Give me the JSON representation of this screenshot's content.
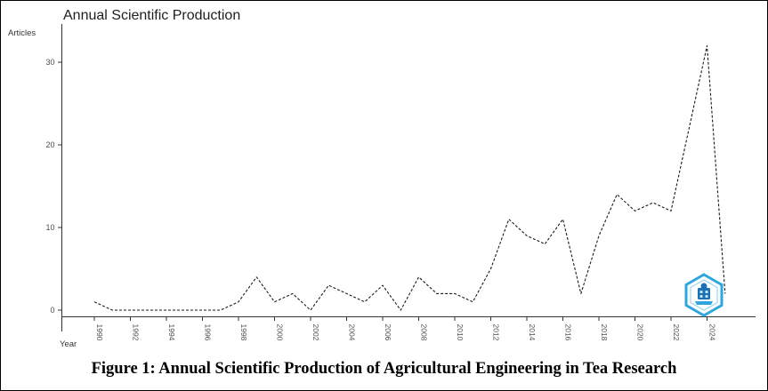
{
  "chart": {
    "title": "Annual Scientific Production",
    "ylabel": "Articles",
    "xlabel": "Year"
  },
  "caption": "Figure 1: Annual Scientific Production of Agricultural Engineering in Tea Research",
  "watermark": {
    "name": "hexagon-logo",
    "primary": "#2fa6de",
    "secondary": "#1a6fb5",
    "accent": "#bfe6f5"
  },
  "chart_data": {
    "type": "line",
    "title": "Annual Scientific Production",
    "xlabel": "Year",
    "ylabel": "Articles",
    "x": [
      1990,
      1991,
      1992,
      1993,
      1994,
      1995,
      1996,
      1997,
      1998,
      1999,
      2000,
      2001,
      2002,
      2003,
      2004,
      2005,
      2006,
      2007,
      2008,
      2009,
      2010,
      2011,
      2012,
      2013,
      2014,
      2015,
      2016,
      2017,
      2018,
      2019,
      2020,
      2021,
      2022,
      2023,
      2024,
      2025
    ],
    "values": [
      1,
      0,
      0,
      0,
      0,
      0,
      0,
      0,
      1,
      4,
      1,
      2,
      0,
      3,
      2,
      1,
      3,
      0,
      4,
      2,
      2,
      1,
      5,
      11,
      9,
      8,
      11,
      2,
      9,
      14,
      12,
      13,
      12,
      22,
      32,
      2
    ],
    "x_tick_labels": [
      "1990",
      "1992",
      "1994",
      "1996",
      "1998",
      "2000",
      "2002",
      "2004",
      "2006",
      "2008",
      "2010",
      "2012",
      "2014",
      "2016",
      "2018",
      "2020",
      "2022",
      "2024"
    ],
    "y_ticks": [
      0,
      10,
      20,
      30
    ],
    "ylim": [
      0,
      33
    ],
    "line_color": "#1a1a1a",
    "line_style": "dashed",
    "grid": false,
    "legend": "none"
  }
}
